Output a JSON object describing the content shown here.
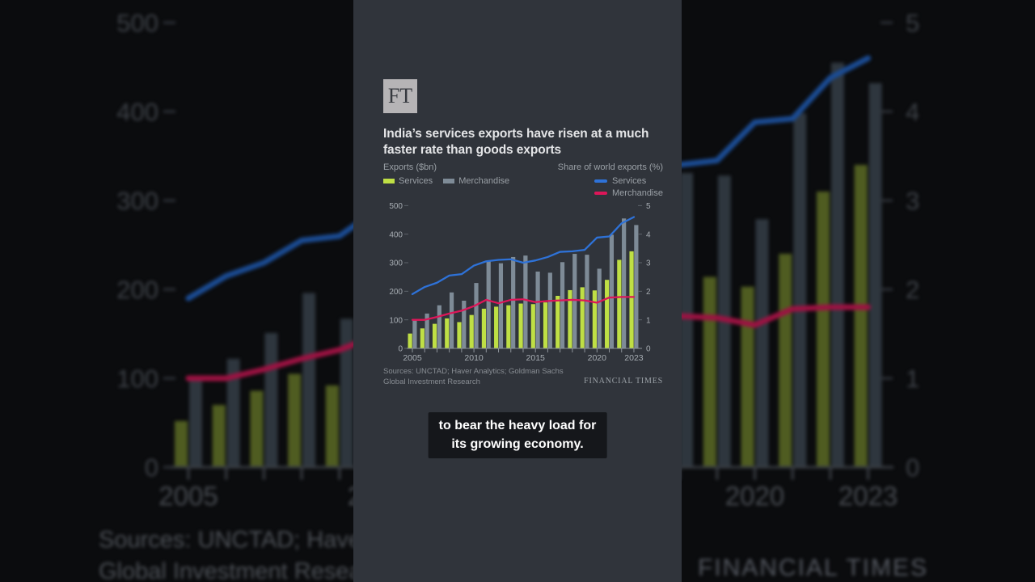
{
  "header": {
    "logo": "FT",
    "title_line1": "India’s services exports have risen at a much",
    "title_line2": "faster rate than goods exports"
  },
  "left_header": {
    "axis_title": "Exports ($bn)",
    "legend": [
      {
        "label": "Services",
        "color": "#bfdf45"
      },
      {
        "label": "Merchandise",
        "color": "#7e8b97"
      }
    ]
  },
  "right_header": {
    "axis_title": "Share of world exports (%)",
    "legend": [
      {
        "label": "Services",
        "color": "#2e72d8"
      },
      {
        "label": "Merchandise",
        "color": "#dd1659"
      }
    ]
  },
  "footer": {
    "sources_line1": "Sources: UNCTAD; Haver Analytics; Goldman Sachs",
    "sources_line2": "Global Investment Research",
    "wordmark": "FINANCIAL TIMES"
  },
  "caption": {
    "line1": "to bear the heavy load for",
    "line2": "its growing economy."
  },
  "colors": {
    "stage_bg": "#0b0c0e",
    "panel_bg": "#30343b",
    "bar_services": "#bfdf45",
    "bar_merchandise": "#7e8b97",
    "line_services": "#2e72d8",
    "line_merchandise": "#dd1659",
    "title_text": "#e4e5e7",
    "muted_text": "#9aa0a6",
    "axis_text": "#a7adb3",
    "axis_line": "#8d939a",
    "tick_dash": "#5e646b",
    "sources_text": "#888d93",
    "wordmark_text": "#9aa0a6",
    "caption_bg": "#15171b",
    "caption_text": "#ffffff",
    "logo_bg": "#b6b4b6",
    "logo_text": "#36393f"
  },
  "bg_dim_colors": {
    "bar_services": "#4f5c21",
    "bar_merchandise": "#2e363e",
    "line_services": "#1b4c94",
    "line_merchandise": "#9c1242",
    "axis_text": "#3d4147",
    "year_text": "#474b51",
    "axis_line": "#3a3e44",
    "tick_dash": "#30343a",
    "sources_text": "#4d5157",
    "wordmark_text": "#555961"
  },
  "chart_data": {
    "type": "combo-bar-line",
    "title": "India's services exports have risen at a much faster rate than goods exports",
    "years": [
      2005,
      2006,
      2007,
      2008,
      2009,
      2010,
      2011,
      2012,
      2013,
      2014,
      2015,
      2016,
      2017,
      2018,
      2019,
      2020,
      2021,
      2022,
      2023
    ],
    "series_bars": [
      {
        "name": "Services exports ($bn)",
        "axis": "left",
        "values": [
          52,
          70,
          86,
          105,
          92,
          117,
          139,
          146,
          151,
          157,
          155,
          161,
          184,
          204,
          214,
          203,
          240,
          310,
          340
        ]
      },
      {
        "name": "Merchandise exports ($bn)",
        "axis": "left",
        "values": [
          100,
          122,
          151,
          196,
          167,
          229,
          306,
          298,
          320,
          325,
          269,
          265,
          302,
          331,
          328,
          279,
          398,
          455,
          432
        ]
      }
    ],
    "series_lines": [
      {
        "name": "Services share of world exports (%)",
        "axis": "right",
        "values": [
          1.9,
          2.15,
          2.3,
          2.55,
          2.6,
          2.9,
          3.05,
          3.1,
          3.12,
          3.0,
          3.08,
          3.2,
          3.38,
          3.4,
          3.45,
          3.88,
          3.92,
          4.38,
          4.6
        ]
      },
      {
        "name": "Merchandise share of world exports (%)",
        "axis": "right",
        "values": [
          1.0,
          1.0,
          1.1,
          1.22,
          1.32,
          1.48,
          1.7,
          1.58,
          1.7,
          1.72,
          1.62,
          1.66,
          1.68,
          1.7,
          1.68,
          1.6,
          1.78,
          1.8,
          1.8
        ]
      }
    ],
    "left_axis": {
      "title": "Exports ($bn)",
      "range": [
        0,
        500
      ],
      "ticks": [
        0,
        100,
        200,
        300,
        400,
        500
      ]
    },
    "right_axis": {
      "title": "Share of world exports (%)",
      "range": [
        0,
        5
      ],
      "ticks": [
        0,
        1,
        2,
        3,
        4,
        5
      ]
    },
    "x_tick_label_indices": [
      0,
      5,
      10,
      15,
      18
    ],
    "x_tick_labels": [
      "2005",
      "2010",
      "2015",
      "2020",
      "2023"
    ],
    "grid": "off",
    "legend_position": "top"
  }
}
